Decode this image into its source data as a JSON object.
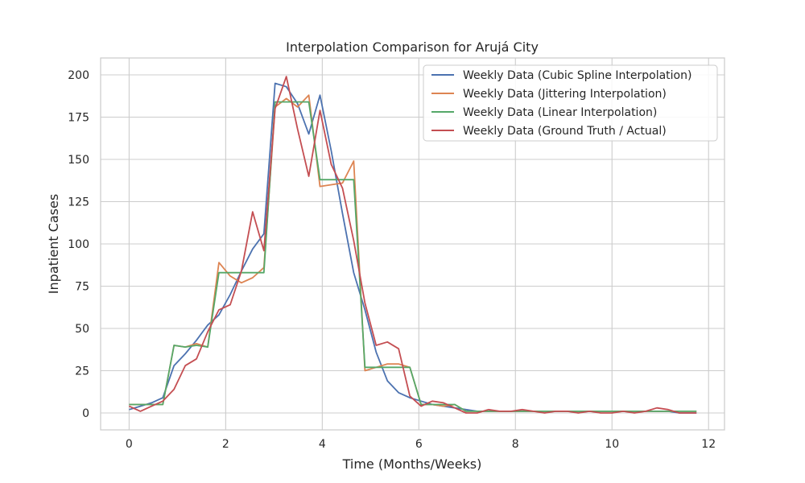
{
  "chart_data": {
    "type": "line",
    "title": "Interpolation Comparison for Arujá City",
    "xlabel": "Time (Months/Weeks)",
    "ylabel": "Inpatient Cases",
    "xlim": [
      -0.59,
      12.33
    ],
    "ylim": [
      -10,
      210
    ],
    "xticks": [
      0,
      2,
      4,
      6,
      8,
      10,
      12
    ],
    "yticks": [
      0,
      25,
      50,
      75,
      100,
      125,
      150,
      175,
      200
    ],
    "grid": true,
    "legend_position": "top-right",
    "x": [
      0,
      0.233,
      0.465,
      0.698,
      0.93,
      1.163,
      1.395,
      1.628,
      1.86,
      2.093,
      2.326,
      2.558,
      2.791,
      3.023,
      3.256,
      3.488,
      3.721,
      3.953,
      4.186,
      4.419,
      4.651,
      4.884,
      5.116,
      5.349,
      5.581,
      5.814,
      6.047,
      6.279,
      6.512,
      6.744,
      6.977,
      7.209,
      7.442,
      7.674,
      7.907,
      8.14,
      8.372,
      8.605,
      8.837,
      9.07,
      9.302,
      9.535,
      9.767,
      10,
      10.233,
      10.465,
      10.698,
      10.93,
      11.163,
      11.395,
      11.628,
      11.75
    ],
    "series": [
      {
        "name": "Weekly Data (Cubic Spline Interpolation)",
        "color": "#4c72b0",
        "values": [
          2,
          4,
          6,
          9,
          28,
          35,
          43,
          52,
          58,
          70,
          84,
          97,
          106,
          195,
          193,
          183,
          165,
          188,
          155,
          118,
          83,
          61,
          36,
          19,
          12,
          9,
          7,
          5,
          4,
          3,
          2,
          1,
          1,
          1,
          1,
          1,
          1,
          1,
          1,
          1,
          1,
          1,
          1,
          1,
          1,
          1,
          1,
          1,
          1,
          0,
          0,
          0
        ]
      },
      {
        "name": "Weekly Data (Jittering Interpolation)",
        "color": "#dd8452",
        "values": [
          5,
          5,
          5,
          5,
          40,
          39,
          41,
          39,
          89,
          81,
          77,
          80,
          86,
          181,
          186,
          181,
          188,
          134,
          135,
          136,
          149,
          25,
          27,
          29,
          29,
          27,
          5,
          5,
          4,
          5,
          1,
          1,
          1,
          1,
          1,
          1,
          1,
          1,
          1,
          1,
          1,
          1,
          1,
          1,
          1,
          1,
          1,
          1,
          1,
          1,
          1,
          1
        ]
      },
      {
        "name": "Weekly Data (Linear Interpolation)",
        "color": "#55a868",
        "values": [
          5,
          5,
          5,
          5,
          40,
          39,
          40,
          39,
          83,
          83,
          83,
          83,
          83,
          184,
          184,
          184,
          184,
          138,
          138,
          138,
          138,
          27,
          27,
          27,
          27,
          27,
          5,
          5,
          5,
          5,
          1,
          1,
          1,
          1,
          1,
          1,
          1,
          1,
          1,
          1,
          1,
          1,
          1,
          1,
          1,
          1,
          1,
          1,
          1,
          1,
          1,
          1
        ]
      },
      {
        "name": "Weekly Data (Ground Truth / Actual)",
        "color": "#c44e52",
        "values": [
          4,
          1,
          4,
          7,
          14,
          28,
          32,
          48,
          61,
          64,
          84,
          119,
          96,
          180,
          199,
          168,
          140,
          179,
          147,
          133,
          102,
          65,
          40,
          42,
          38,
          10,
          4,
          7,
          6,
          3,
          0,
          0,
          2,
          1,
          1,
          2,
          1,
          0,
          1,
          1,
          0,
          1,
          0,
          0,
          1,
          0,
          1,
          3,
          2,
          0,
          0,
          0
        ]
      }
    ]
  }
}
